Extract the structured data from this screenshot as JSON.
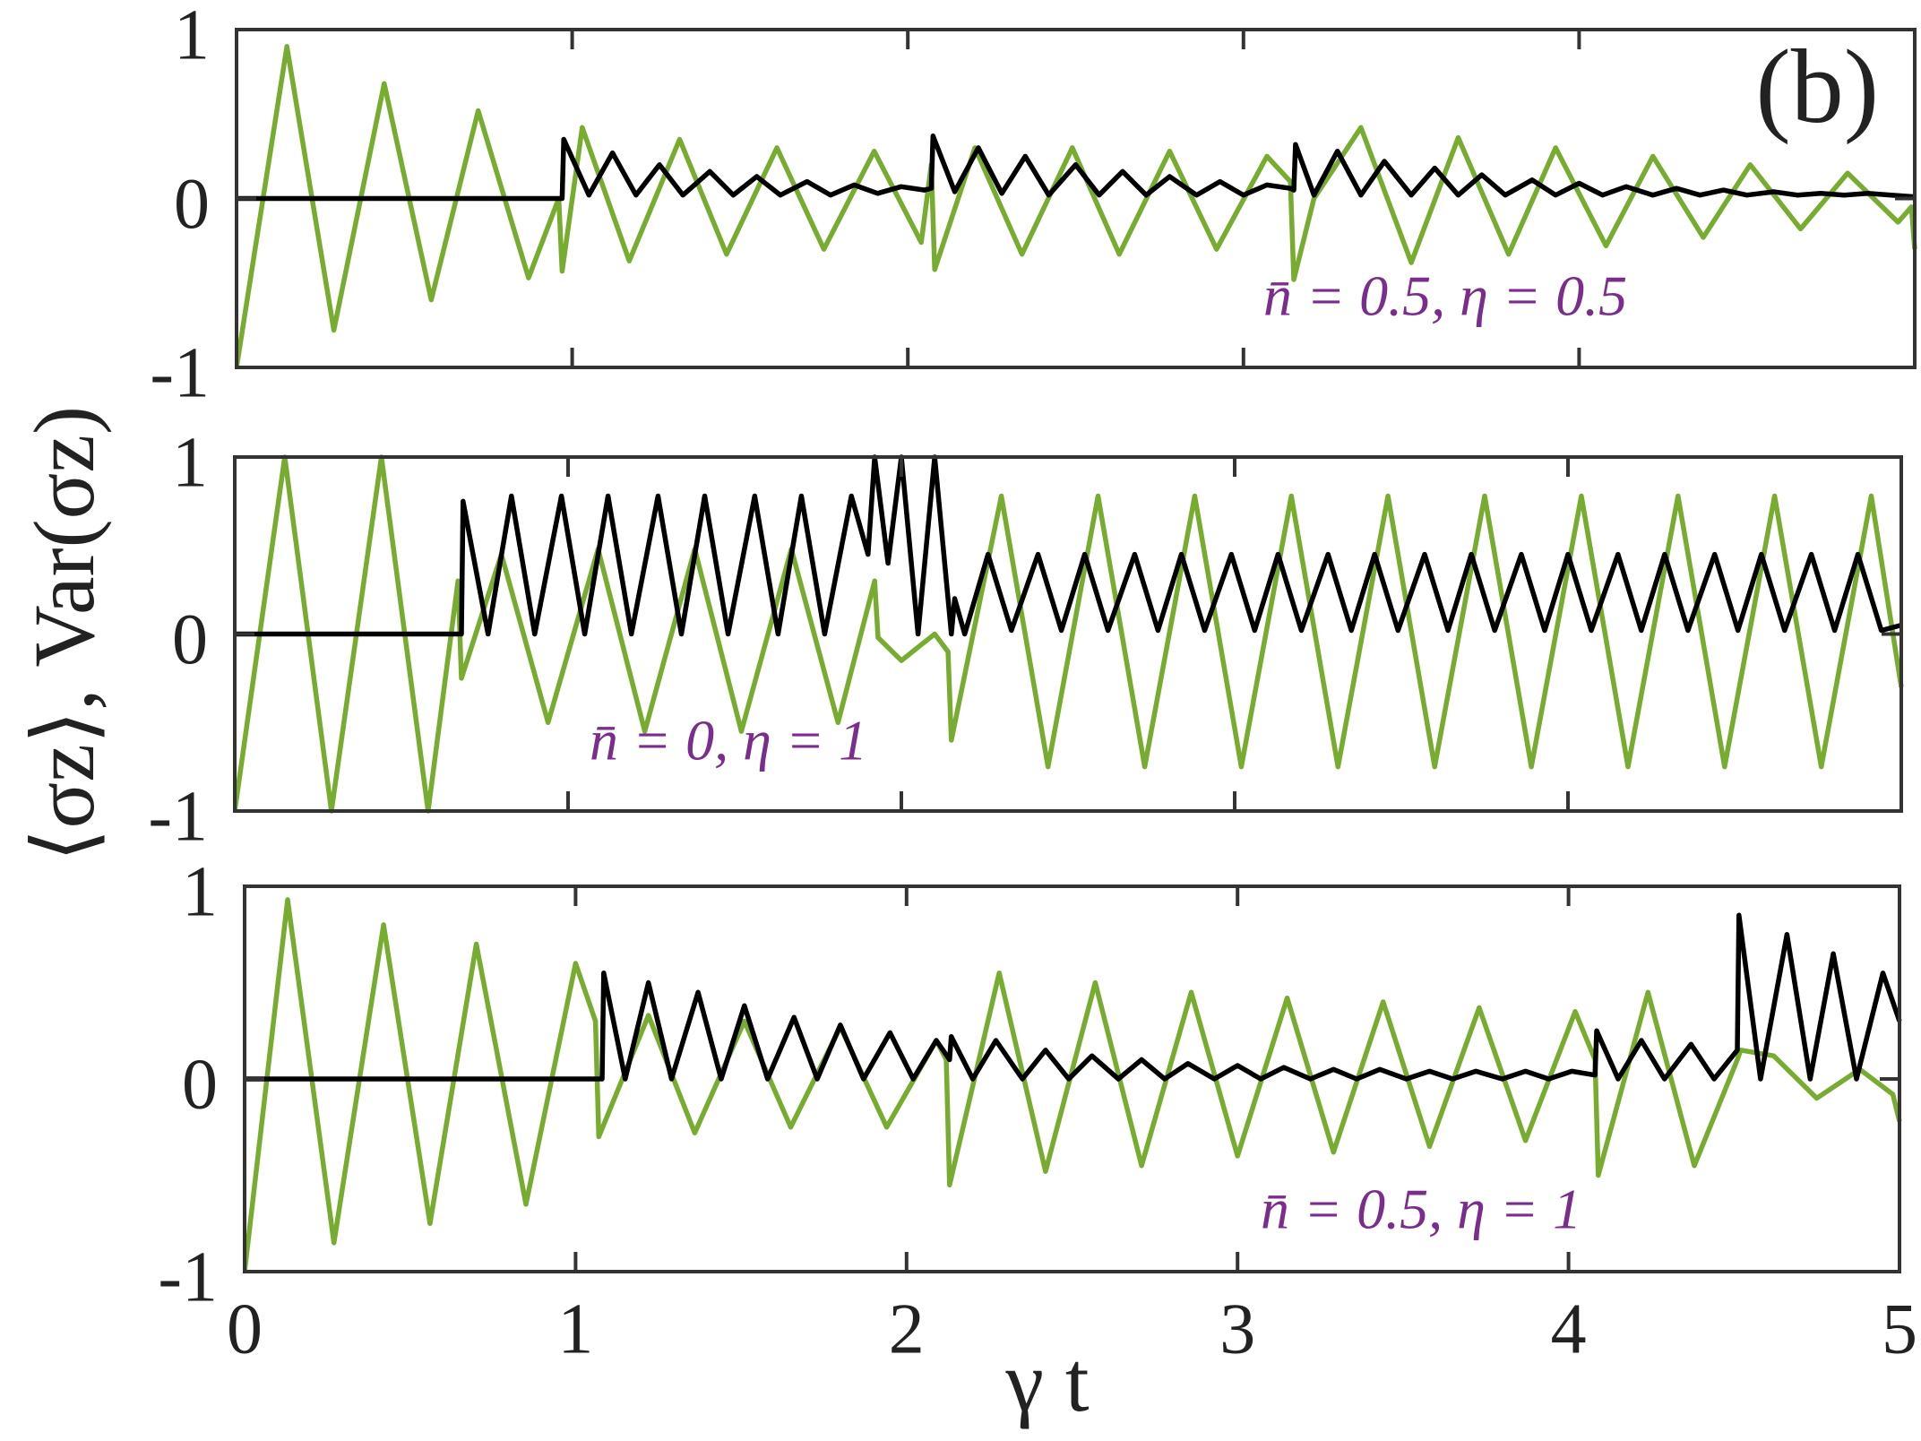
{
  "chart_data": [
    {
      "type": "line",
      "xlim": [
        0,
        5
      ],
      "ylim": [
        -1,
        1
      ],
      "xticks": [
        0,
        1,
        2,
        3,
        4,
        5
      ],
      "yticks": [
        -1,
        0,
        1
      ],
      "label": "(b)",
      "annotation": "n̄ = 0.5, η = 0.5",
      "series": [
        {
          "color": "#77ac30",
          "x": [
            0,
            0.15,
            0.29,
            0.44,
            0.58,
            0.72,
            0.87,
            0.96,
            0.97,
            1.03,
            1.17,
            1.32,
            1.46,
            1.61,
            1.75,
            1.9,
            2.04,
            2.07,
            2.08,
            2.2,
            2.34,
            2.49,
            2.63,
            2.78,
            2.92,
            3.07,
            3.14,
            3.15,
            3.21,
            3.35,
            3.5,
            3.64,
            3.79,
            3.93,
            4.08,
            4.22,
            4.37,
            4.51,
            4.66,
            4.8,
            4.95,
            4.99,
            5
          ],
          "values": [
            -1,
            0.9,
            -0.78,
            0.68,
            -0.6,
            0.52,
            -0.47,
            0,
            -0.43,
            0.42,
            -0.37,
            0.35,
            -0.33,
            0.3,
            -0.3,
            0.28,
            -0.26,
            0.2,
            -0.42,
            0.3,
            -0.33,
            0.3,
            -0.33,
            0.28,
            -0.3,
            0.25,
            0.1,
            -0.48,
            0,
            0.42,
            -0.38,
            0.36,
            -0.33,
            0.3,
            -0.28,
            0.25,
            -0.23,
            0.2,
            -0.18,
            0.15,
            -0.14,
            -0.05,
            -0.3
          ]
        },
        {
          "color": "#000000",
          "x": [
            0,
            0.97,
            0.975,
            1.05,
            1.12,
            1.19,
            1.26,
            1.33,
            1.41,
            1.48,
            1.55,
            1.62,
            1.7,
            1.77,
            1.84,
            1.91,
            1.98,
            2.05,
            2.07,
            2.075,
            2.14,
            2.21,
            2.28,
            2.35,
            2.42,
            2.5,
            2.57,
            2.64,
            2.71,
            2.78,
            2.86,
            2.93,
            3.0,
            3.07,
            3.14,
            3.15,
            3.155,
            3.21,
            3.28,
            3.35,
            3.42,
            3.5,
            3.57,
            3.64,
            3.71,
            3.78,
            3.86,
            3.93,
            4.0,
            4.07,
            4.14,
            4.22,
            4.29,
            4.36,
            4.43,
            4.5,
            4.58,
            4.65,
            4.72,
            4.79,
            4.86,
            4.93,
            5
          ],
          "values": [
            0,
            0,
            0.35,
            0.02,
            0.27,
            0.02,
            0.2,
            0.02,
            0.16,
            0.02,
            0.13,
            0.02,
            0.1,
            0.02,
            0.08,
            0.03,
            0.07,
            0.05,
            0.06,
            0.37,
            0.04,
            0.3,
            0.03,
            0.25,
            0.02,
            0.2,
            0.02,
            0.16,
            0.02,
            0.13,
            0.02,
            0.1,
            0.02,
            0.08,
            0.06,
            0.05,
            0.32,
            0.02,
            0.28,
            0.02,
            0.22,
            0.02,
            0.18,
            0.02,
            0.14,
            0.02,
            0.11,
            0.02,
            0.09,
            0.02,
            0.07,
            0.02,
            0.06,
            0.02,
            0.05,
            0.02,
            0.04,
            0.02,
            0.03,
            0.02,
            0.03,
            0.02,
            0.01
          ]
        }
      ]
    },
    {
      "type": "line",
      "xlim": [
        0,
        5
      ],
      "ylim": [
        -1,
        1
      ],
      "xticks": [
        0,
        1,
        2,
        3,
        4,
        5
      ],
      "yticks": [
        -1,
        0,
        1
      ],
      "annotation": "n̄ = 0, η = 1",
      "ylabel": "⟨σz⟩, Var(σz)",
      "series": [
        {
          "color": "#77ac30",
          "x": [
            0,
            0.15,
            0.29,
            0.44,
            0.58,
            0.67,
            0.68,
            0.8,
            0.94,
            1.09,
            1.23,
            1.38,
            1.52,
            1.67,
            1.81,
            1.92,
            1.93,
            2.0,
            2.1,
            2.14,
            2.15,
            2.3,
            2.44,
            2.59,
            2.73,
            2.88,
            3.02,
            3.17,
            3.31,
            3.46,
            3.6,
            3.75,
            3.89,
            4.04,
            4.18,
            4.33,
            4.47,
            4.62,
            4.76,
            4.91,
            5
          ],
          "values": [
            -1,
            1,
            -1,
            1,
            -1,
            0.3,
            -0.25,
            0.45,
            -0.5,
            0.48,
            -0.55,
            0.48,
            -0.55,
            0.48,
            -0.5,
            0.3,
            -0.02,
            -0.15,
            0,
            -0.1,
            -0.6,
            0.78,
            -0.75,
            0.78,
            -0.75,
            0.78,
            -0.75,
            0.78,
            -0.75,
            0.78,
            -0.75,
            0.78,
            -0.75,
            0.78,
            -0.75,
            0.78,
            -0.75,
            0.78,
            -0.75,
            0.78,
            -0.3
          ]
        },
        {
          "color": "#000000",
          "x": [
            0,
            0.68,
            0.685,
            0.76,
            0.83,
            0.9,
            0.98,
            1.05,
            1.12,
            1.19,
            1.27,
            1.34,
            1.41,
            1.48,
            1.56,
            1.63,
            1.7,
            1.77,
            1.85,
            1.9,
            1.92,
            1.96,
            2.0,
            2.05,
            2.1,
            2.15,
            2.16,
            2.19,
            2.26,
            2.33,
            2.41,
            2.48,
            2.55,
            2.62,
            2.7,
            2.77,
            2.84,
            2.91,
            2.99,
            3.06,
            3.13,
            3.2,
            3.28,
            3.35,
            3.42,
            3.49,
            3.57,
            3.64,
            3.71,
            3.78,
            3.86,
            3.93,
            4.0,
            4.07,
            4.15,
            4.22,
            4.29,
            4.36,
            4.44,
            4.51,
            4.58,
            4.65,
            4.73,
            4.8,
            4.87,
            4.94,
            5
          ],
          "values": [
            0,
            0,
            0.75,
            0,
            0.78,
            0,
            0.78,
            0,
            0.78,
            0,
            0.78,
            0,
            0.78,
            0,
            0.78,
            0,
            0.78,
            0,
            0.78,
            0.45,
            1,
            0.4,
            1,
            0,
            1,
            0,
            0.2,
            0,
            0.45,
            0.02,
            0.45,
            0.02,
            0.45,
            0.02,
            0.45,
            0.02,
            0.45,
            0.02,
            0.45,
            0.02,
            0.45,
            0.02,
            0.45,
            0.02,
            0.45,
            0.02,
            0.45,
            0.02,
            0.45,
            0.02,
            0.45,
            0.02,
            0.45,
            0.02,
            0.45,
            0.02,
            0.45,
            0.02,
            0.45,
            0.02,
            0.45,
            0.02,
            0.45,
            0.02,
            0.45,
            0.02,
            0.05
          ]
        }
      ]
    },
    {
      "type": "line",
      "xlim": [
        0,
        5
      ],
      "ylim": [
        -1,
        1
      ],
      "xticks": [
        0,
        1,
        2,
        3,
        4,
        5
      ],
      "yticks": [
        -1,
        0,
        1
      ],
      "annotation": "n̄ = 0.5, η = 1",
      "xlabel": "γ t",
      "series": [
        {
          "color": "#77ac30",
          "x": [
            0,
            0.13,
            0.27,
            0.42,
            0.56,
            0.7,
            0.85,
            1.0,
            1.06,
            1.07,
            1.22,
            1.36,
            1.51,
            1.65,
            1.8,
            1.94,
            2.09,
            2.12,
            2.13,
            2.28,
            2.42,
            2.57,
            2.71,
            2.86,
            3.0,
            3.15,
            3.29,
            3.44,
            3.58,
            3.73,
            3.87,
            4.02,
            4.08,
            4.09,
            4.24,
            4.38,
            4.51,
            4.52,
            4.62,
            4.75,
            4.88,
            4.98,
            5
          ],
          "values": [
            -1,
            0.93,
            -0.85,
            0.8,
            -0.75,
            0.7,
            -0.65,
            0.6,
            0.3,
            -0.3,
            0.33,
            -0.28,
            0.3,
            -0.25,
            0.27,
            -0.25,
            0.2,
            0.1,
            -0.55,
            0.55,
            -0.48,
            0.5,
            -0.45,
            0.45,
            -0.4,
            0.42,
            -0.38,
            0.4,
            -0.35,
            0.37,
            -0.32,
            0.35,
            0.1,
            -0.5,
            0.45,
            -0.45,
            0.1,
            0.15,
            0.12,
            -0.1,
            0.05,
            -0.08,
            -0.22
          ]
        },
        {
          "color": "#000000",
          "x": [
            0,
            1.08,
            1.085,
            1.15,
            1.22,
            1.29,
            1.37,
            1.44,
            1.51,
            1.58,
            1.66,
            1.73,
            1.8,
            1.87,
            1.95,
            2.02,
            2.09,
            2.13,
            2.135,
            2.2,
            2.27,
            2.35,
            2.42,
            2.49,
            2.56,
            2.64,
            2.71,
            2.78,
            2.85,
            2.93,
            3.0,
            3.07,
            3.14,
            3.22,
            3.29,
            3.36,
            3.43,
            3.51,
            3.58,
            3.65,
            3.72,
            3.8,
            3.87,
            3.94,
            4.01,
            4.08,
            4.085,
            4.15,
            4.22,
            4.29,
            4.37,
            4.44,
            4.51,
            4.515,
            4.58,
            4.66,
            4.73,
            4.8,
            4.87,
            4.95,
            5
          ],
          "values": [
            0,
            0,
            0.55,
            0,
            0.5,
            0,
            0.45,
            0,
            0.38,
            0,
            0.32,
            0,
            0.28,
            0,
            0.24,
            0,
            0.2,
            0.1,
            0.22,
            0,
            0.2,
            0,
            0.15,
            0,
            0.12,
            0,
            0.1,
            0,
            0.08,
            0,
            0.07,
            0,
            0.06,
            0,
            0.05,
            0,
            0.05,
            0,
            0.04,
            0,
            0.04,
            0,
            0.04,
            0,
            0.04,
            0.02,
            0.25,
            0,
            0.2,
            0,
            0.18,
            0,
            0.15,
            0.85,
            0,
            0.75,
            0,
            0.65,
            0,
            0.55,
            0.3
          ]
        }
      ]
    }
  ]
}
